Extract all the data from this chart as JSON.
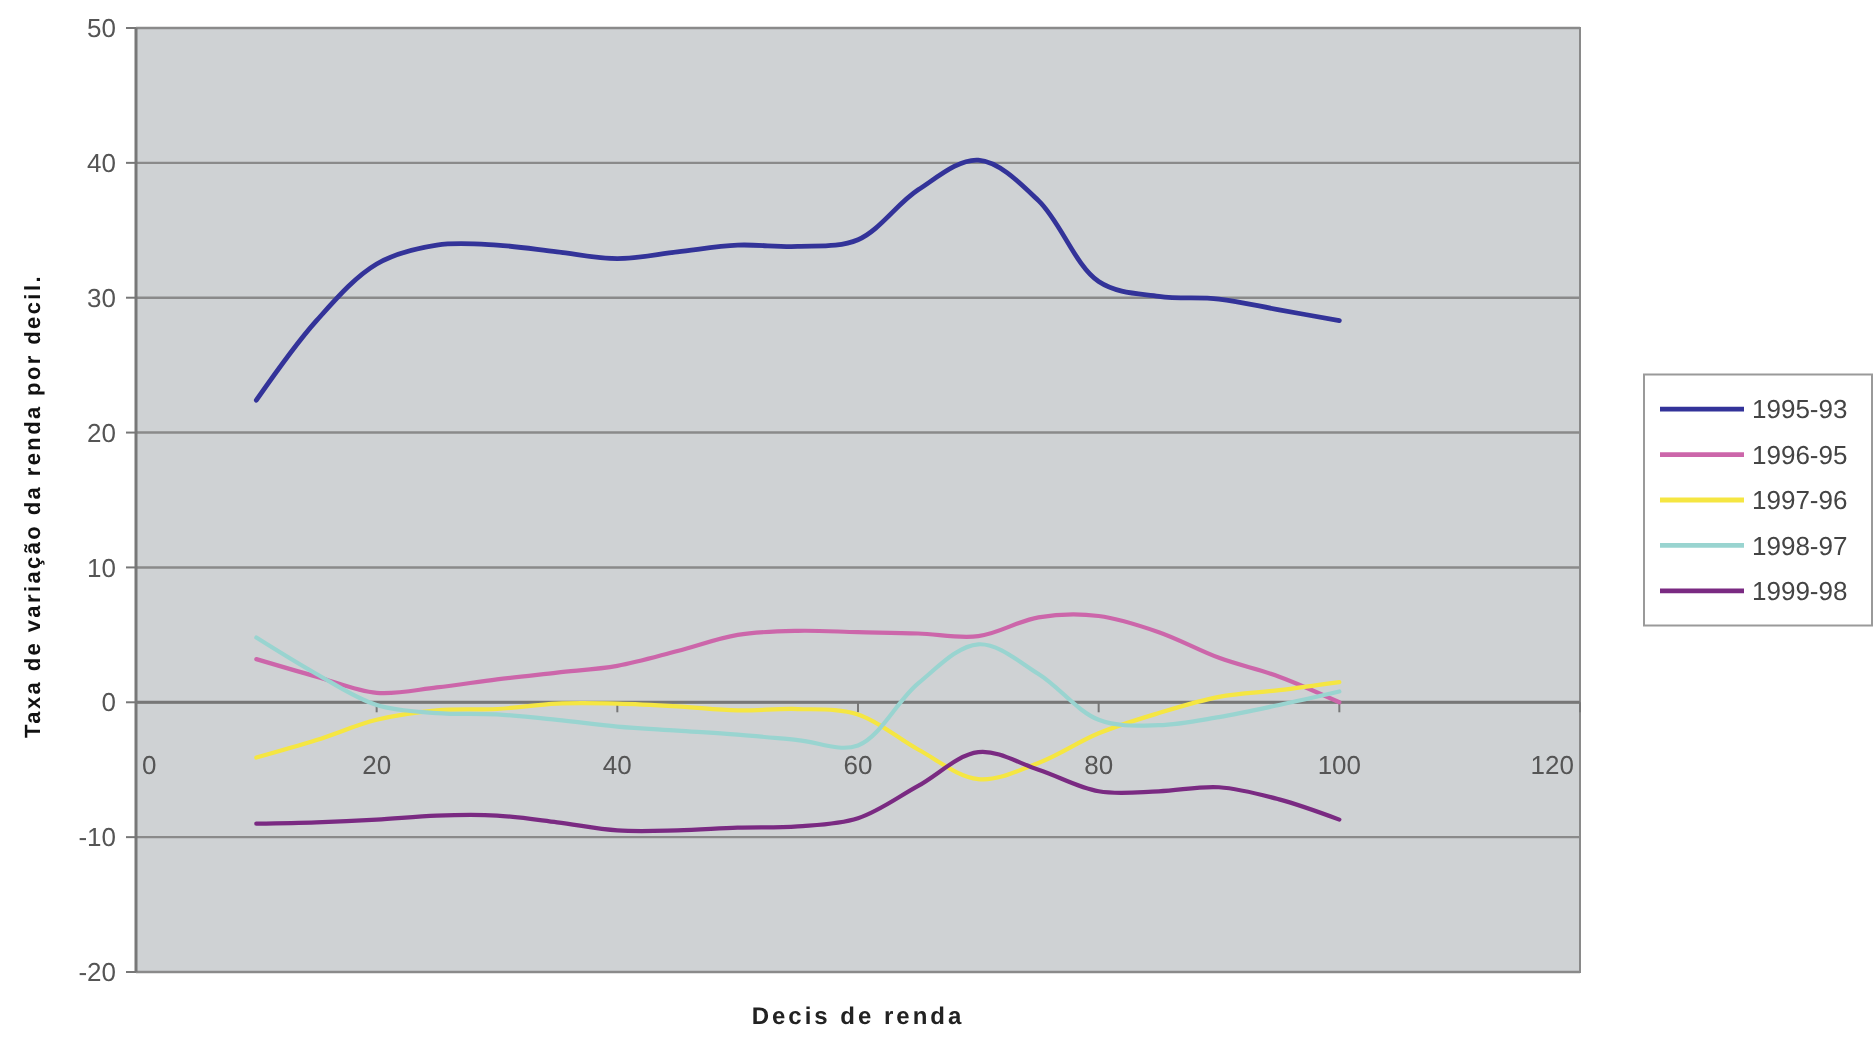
{
  "chart_data": {
    "type": "line",
    "xlabel": "Decis de renda",
    "ylabel": "Taxa de variação da renda por decil.",
    "x": [
      10,
      15,
      20,
      25,
      30,
      35,
      40,
      45,
      50,
      55,
      60,
      65,
      70,
      75,
      80,
      85,
      90,
      95,
      100
    ],
    "series": [
      {
        "name": "1995-93",
        "color": "#333399",
        "values": [
          22.4,
          28.3,
          32.5,
          33.9,
          33.9,
          33.4,
          32.9,
          33.4,
          33.9,
          33.8,
          34.3,
          38.0,
          40.2,
          37.2,
          31.2,
          30.1,
          29.9,
          29.1,
          28.3
        ]
      },
      {
        "name": "1996-95",
        "color": "#cc66aa",
        "values": [
          3.2,
          1.9,
          0.7,
          1.1,
          1.7,
          2.2,
          2.7,
          3.8,
          5.0,
          5.3,
          5.2,
          5.1,
          4.9,
          6.3,
          6.4,
          5.2,
          3.3,
          1.9,
          0
        ]
      },
      {
        "name": "1997-96",
        "color": "#f5e642",
        "values": [
          -4.1,
          -2.8,
          -1.3,
          -0.6,
          -0.5,
          -0.1,
          -0.1,
          -0.3,
          -0.6,
          -0.5,
          -0.9,
          -3.5,
          -5.7,
          -4.5,
          -2.3,
          -0.8,
          0.4,
          0.9,
          1.5
        ]
      },
      {
        "name": "1998-97",
        "color": "#99d4d0",
        "values": [
          4.8,
          2.1,
          -0.2,
          -0.8,
          -0.9,
          -1.3,
          -1.8,
          -2.1,
          -2.4,
          -2.8,
          -3.2,
          1.4,
          4.3,
          2.1,
          -1.3,
          -1.7,
          -1.1,
          -0.2,
          0.8
        ]
      },
      {
        "name": "1999-98",
        "color": "#7a2a82",
        "values": [
          -9.0,
          -8.9,
          -8.7,
          -8.4,
          -8.4,
          -8.9,
          -9.5,
          -9.5,
          -9.3,
          -9.2,
          -8.6,
          -6.2,
          -3.7,
          -5.0,
          -6.6,
          -6.6,
          -6.3,
          -7.2,
          -8.7
        ]
      }
    ],
    "xlim": [
      0,
      120
    ],
    "xticks": [
      0,
      20,
      40,
      60,
      80,
      100,
      120
    ],
    "ylim": [
      -20,
      50
    ],
    "yticks": [
      -20,
      -10,
      0,
      10,
      20,
      30,
      40,
      50
    ],
    "grid": "y",
    "legend": "right"
  }
}
